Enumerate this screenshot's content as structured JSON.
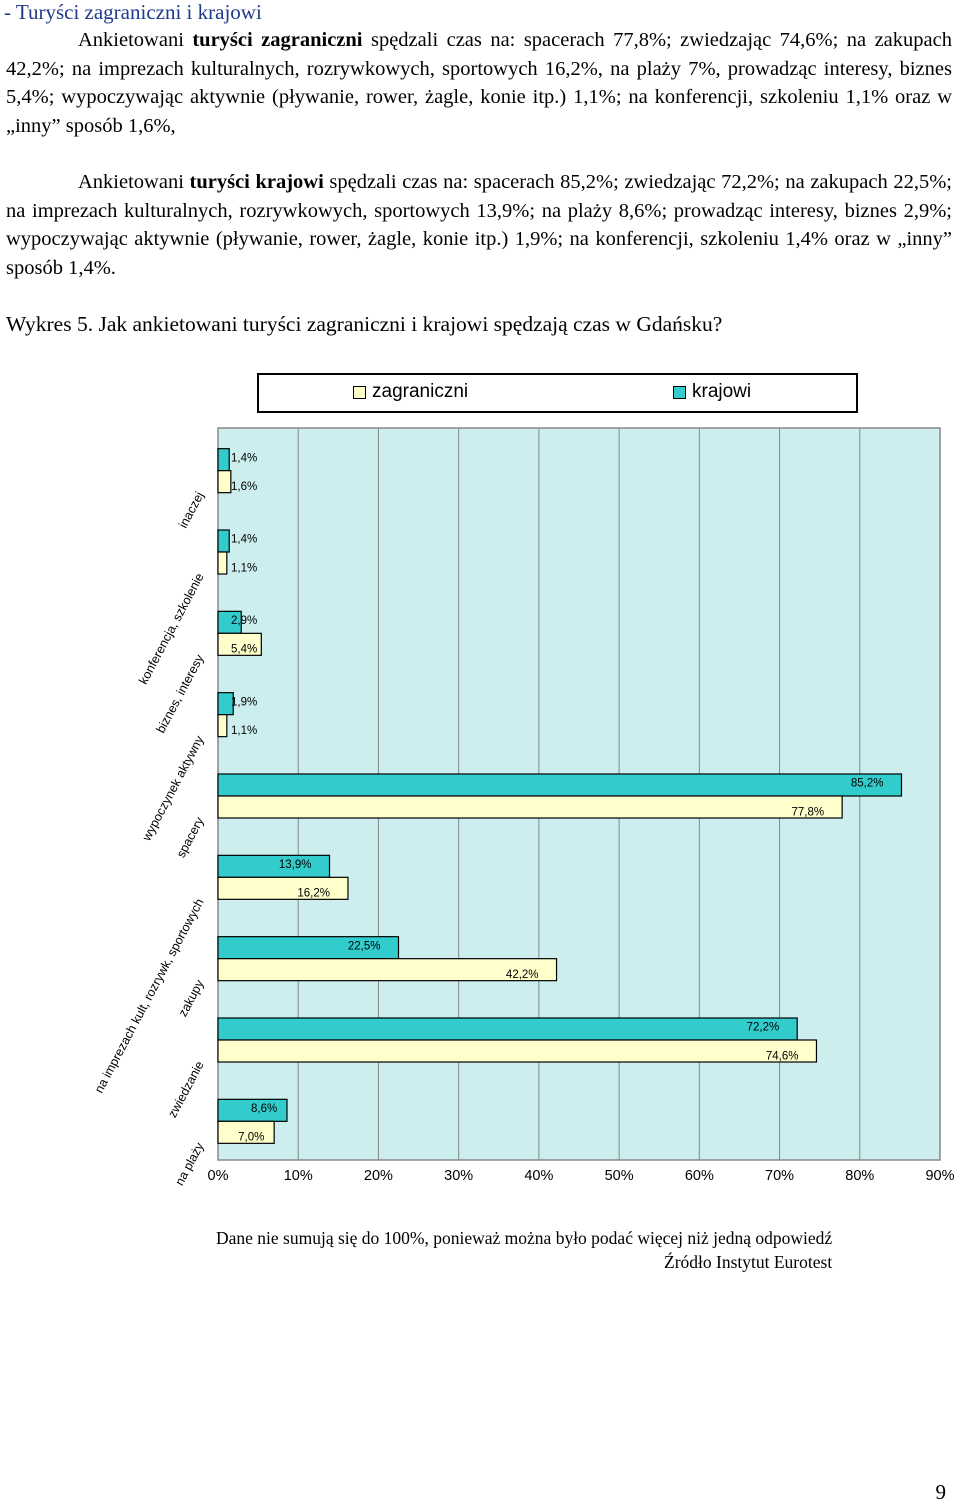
{
  "heading": "- Turyści zagraniczni i krajowi",
  "paragraphs": {
    "p1_before": "Ankietowani ",
    "p1_bold": "turyści zagraniczni",
    "p1_after": " spędzali czas  na: spacerach 77,8%; zwiedzając 74,6%; na zakupach 42,2%; na imprezach kulturalnych, rozrywkowych, sportowych 16,2%, na plaży 7%, prowadząc interesy, biznes 5,4%;  wypoczywając aktywnie  (pływanie, rower, żagle, konie itp.) 1,1%;  na konferencji, szkoleniu 1,1% oraz w „inny” sposób 1,6%,",
    "p2_before": "Ankietowani ",
    "p2_bold": "turyści krajowi",
    "p2_after": " spędzali czas na: spacerach 85,2%; zwiedzając 72,2%; na zakupach 22,5%; na imprezach kulturalnych, rozrywkowych, sportowych 13,9%; na plaży 8,6%; prowadząc interesy, biznes 2,9%;  wypoczywając aktywnie  (pływanie, rower, żagle, konie itp.) 1,9%; na konferencji, szkoleniu 1,4%  oraz w  „inny” sposób 1,4%."
  },
  "caption": "Wykres 5. Jak ankietowani turyści  zagraniczni i krajowi spędzają  czas w Gdańsku?",
  "colors": {
    "zagraniczni": "#ffffcc",
    "krajowi": "#33cccc",
    "plot_bg": "#cceeee"
  },
  "chart_data": {
    "type": "bar",
    "orientation": "horizontal",
    "legend_position": "top",
    "grid": true,
    "xlim": [
      0,
      90
    ],
    "x_ticks": [
      "0%",
      "10%",
      "20%",
      "30%",
      "40%",
      "50%",
      "60%",
      "70%",
      "80%",
      "90%"
    ],
    "categories": [
      "inaczej",
      "konferencja, szkolenie",
      "biznes, interesy",
      "wypoczynek aktywny",
      "spacery",
      "na imprezach kult, rozrywk, sportowych",
      "zakupy",
      "zwiedzanie",
      "na plaży"
    ],
    "series": [
      {
        "name": "zagraniczni",
        "values": [
          1.6,
          1.1,
          5.4,
          1.1,
          77.8,
          16.2,
          42.2,
          74.6,
          7.0
        ],
        "labels": [
          "1,6%",
          "1,1%",
          "5,4%",
          "1,1%",
          "77,8%",
          "16,2%",
          "42,2%",
          "74,6%",
          "7,0%"
        ]
      },
      {
        "name": "krajowi",
        "values": [
          1.4,
          1.4,
          2.9,
          1.9,
          85.2,
          13.9,
          22.5,
          72.2,
          8.6
        ],
        "labels": [
          "1,4%",
          "1,4%",
          "2,9%",
          "1,9%",
          "85,2%",
          "13,9%",
          "22,5%",
          "72,2%",
          "8,6%"
        ]
      }
    ]
  },
  "note": "Dane nie sumują się do 100%, ponieważ można było podać więcej niż jedną odpowiedź",
  "source": "Źródło Instytut Eurotest",
  "page_number": "9"
}
